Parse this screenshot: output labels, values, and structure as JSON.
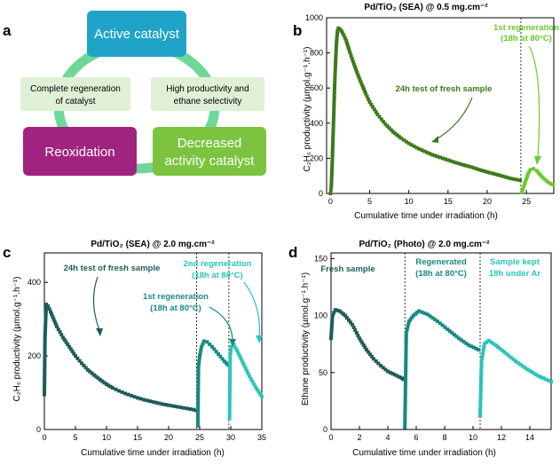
{
  "panels": {
    "a": {
      "label": "a",
      "boxes": {
        "active": "Active catalyst",
        "decreased_l1": "Decreased",
        "decreased_l2": "activity catalyst",
        "reoxidation": "Reoxidation",
        "regen_l1": "Complete regeneration",
        "regen_l2": "of catalyst",
        "prod_l1": "High productivity and",
        "prod_l2": "ethane selectivity"
      },
      "colors": {
        "active": "#1fa3c9",
        "decreased": "#7cc43f",
        "reoxidation": "#a0237f",
        "pale": "#dff0d6",
        "arrow": "#5fd08f"
      }
    },
    "b": {
      "label": "b",
      "title": "Pd/TiO₂ (SEA) @ 0.5 mg.cm⁻²",
      "ylabel": "C₂H₆ productivity (µmol.g⁻¹.h⁻¹)",
      "ann_fresh": "24h test of fresh sample",
      "ann_regen1": "1st regeneration",
      "ann_regen2": "(18h at 80°C)"
    },
    "c": {
      "label": "c",
      "title": "Pd/TiO₂ (SEA) @ 2.0 mg.cm⁻²",
      "ylabel": "C₂H₆ productivity (µmol.g⁻¹.h⁻¹)",
      "ann_fresh": "24h test of fresh sample",
      "ann_r1a": "1st regeneration",
      "ann_r1b": "(18h at 80°C)",
      "ann_r2a": "2nd regeneration",
      "ann_r2b": "(18h at 80°C)"
    },
    "d": {
      "label": "d",
      "title": "Pd/TiO₂ (Photo) @ 2.0 mg.cm⁻²",
      "ylabel": "Ethane productivity (µmol.g⁻¹.h⁻¹)",
      "ann_fresh": "Fresh sample",
      "ann_regen_a": "Regenerated",
      "ann_regen_b": "(18h at 80°C)",
      "ann_kept_a": "Sample kept",
      "ann_kept_b": "18h under Ar"
    }
  },
  "chart_data": [
    {
      "id": "b",
      "type": "scatter",
      "title": "Pd/TiO2 (SEA) @ 0.5 mg.cm-2",
      "xlabel": "Cumulative time under irradiation (h)",
      "ylabel": "C2H6 productivity (umol.g-1.h-1)",
      "xlim": [
        -0.5,
        28.5
      ],
      "ylim": [
        0,
        1000
      ],
      "xticks": [
        0,
        5,
        10,
        15,
        20,
        25
      ],
      "yticks": [
        0,
        200,
        400,
        600,
        800,
        1000
      ],
      "vlines": [
        24.3
      ],
      "series": [
        {
          "name": "fresh",
          "color": "#3d7a1a",
          "points": [
            [
              0,
              0
            ],
            [
              0.1,
              40
            ],
            [
              0.2,
              150
            ],
            [
              0.3,
              290
            ],
            [
              0.4,
              430
            ],
            [
              0.5,
              580
            ],
            [
              0.6,
              700
            ],
            [
              0.7,
              800
            ],
            [
              0.8,
              880
            ],
            [
              0.9,
              925
            ],
            [
              1.0,
              940
            ],
            [
              1.2,
              935
            ],
            [
              1.4,
              925
            ],
            [
              1.7,
              900
            ],
            [
              2,
              870
            ],
            [
              2.5,
              800
            ],
            [
              3,
              735
            ],
            [
              3.5,
              675
            ],
            [
              4,
              620
            ],
            [
              4.5,
              568
            ],
            [
              5,
              520
            ],
            [
              6,
              450
            ],
            [
              7,
              395
            ],
            [
              8,
              350
            ],
            [
              9,
              315
            ],
            [
              10,
              285
            ],
            [
              11,
              260
            ],
            [
              12,
              240
            ],
            [
              13,
              220
            ],
            [
              14,
              205
            ],
            [
              15,
              190
            ],
            [
              16,
              175
            ],
            [
              17,
              162
            ],
            [
              18,
              150
            ],
            [
              19,
              135
            ],
            [
              20,
              122
            ],
            [
              21,
              110
            ],
            [
              22,
              98
            ],
            [
              23,
              85
            ],
            [
              24.2,
              75
            ]
          ]
        },
        {
          "name": "1st regeneration",
          "color": "#6cc830",
          "points": [
            [
              24.4,
              5
            ],
            [
              24.6,
              30
            ],
            [
              24.9,
              70
            ],
            [
              25.2,
              110
            ],
            [
              25.5,
              135
            ],
            [
              25.9,
              140
            ],
            [
              26.3,
              130
            ],
            [
              26.7,
              110
            ],
            [
              27.1,
              90
            ],
            [
              27.6,
              70
            ],
            [
              28.1,
              55
            ],
            [
              28.4,
              50
            ]
          ]
        }
      ]
    },
    {
      "id": "c",
      "type": "scatter",
      "title": "Pd/TiO2 (SEA) @ 2.0 mg.cm-2",
      "xlabel": "Cumulative time under irradiation (h)",
      "ylabel": "C2H6 productivity (umol.g-1.h-1)",
      "xlim": [
        0,
        35
      ],
      "ylim": [
        0,
        480
      ],
      "xticks": [
        0,
        5,
        10,
        15,
        20,
        25,
        30,
        35
      ],
      "yticks": [
        0,
        200,
        400
      ],
      "vlines": [
        24.5,
        29.7
      ],
      "series": [
        {
          "name": "fresh",
          "color": "#1f5c57",
          "points": [
            [
              0,
              95
            ],
            [
              0.1,
              250
            ],
            [
              0.3,
              340
            ],
            [
              0.6,
              335
            ],
            [
              1,
              320
            ],
            [
              1.5,
              300
            ],
            [
              2,
              280
            ],
            [
              3,
              250
            ],
            [
              4,
              225
            ],
            [
              5,
              200
            ],
            [
              6,
              180
            ],
            [
              7,
              162
            ],
            [
              8,
              148
            ],
            [
              9,
              135
            ],
            [
              10,
              123
            ],
            [
              11,
              113
            ],
            [
              12,
              105
            ],
            [
              13,
              98
            ],
            [
              14,
              92
            ],
            [
              15,
              86
            ],
            [
              16,
              81
            ],
            [
              17,
              77
            ],
            [
              18,
              73
            ],
            [
              19,
              69
            ],
            [
              20,
              66
            ],
            [
              21,
              63
            ],
            [
              22,
              60
            ],
            [
              23,
              57
            ],
            [
              24,
              54
            ],
            [
              24.4,
              52
            ]
          ]
        },
        {
          "name": "1st regeneration",
          "color": "#178a80",
          "points": [
            [
              24.7,
              10
            ],
            [
              24.8,
              170
            ],
            [
              25,
              200
            ],
            [
              25.3,
              225
            ],
            [
              25.7,
              240
            ],
            [
              26.2,
              238
            ],
            [
              27,
              225
            ],
            [
              28,
              205
            ],
            [
              29,
              185
            ],
            [
              29.6,
              175
            ]
          ]
        },
        {
          "name": "2nd regeneration",
          "color": "#2bc4b8",
          "points": [
            [
              29.8,
              30
            ],
            [
              29.9,
              200
            ],
            [
              30.1,
              225
            ],
            [
              30.5,
              230
            ],
            [
              31,
              215
            ],
            [
              32,
              180
            ],
            [
              33,
              145
            ],
            [
              34,
              115
            ],
            [
              35,
              90
            ]
          ]
        }
      ]
    },
    {
      "id": "d",
      "type": "scatter",
      "title": "Pd/TiO2 (Photo) @ 2.0 mg.cm-2",
      "xlabel": "Cumulative time under irradiation (h)",
      "ylabel": "Ethane productivity (umol.g-1.h-1)",
      "xlim": [
        0,
        15.5
      ],
      "ylim": [
        0,
        155
      ],
      "xticks": [
        0,
        2,
        4,
        6,
        8,
        10,
        12,
        14
      ],
      "yticks": [
        0,
        50,
        100,
        150
      ],
      "vlines": [
        5.2,
        10.5
      ],
      "series": [
        {
          "name": "Fresh sample",
          "color": "#1f5c57",
          "points": [
            [
              0,
              80
            ],
            [
              0.1,
              100
            ],
            [
              0.3,
              105
            ],
            [
              0.6,
              104
            ],
            [
              1,
              100
            ],
            [
              1.5,
              92
            ],
            [
              2,
              80
            ],
            [
              2.5,
              70
            ],
            [
              3,
              62
            ],
            [
              3.5,
              56
            ],
            [
              4,
              51
            ],
            [
              4.5,
              48
            ],
            [
              5,
              45
            ],
            [
              5.1,
              44
            ]
          ]
        },
        {
          "name": "Regenerated (18h at 80C)",
          "color": "#178a80",
          "points": [
            [
              5.2,
              2
            ],
            [
              5.3,
              85
            ],
            [
              5.5,
              95
            ],
            [
              5.8,
              100
            ],
            [
              6.2,
              104
            ],
            [
              6.8,
              101
            ],
            [
              7.5,
              95
            ],
            [
              8.2,
              88
            ],
            [
              9,
              80
            ],
            [
              9.7,
              74
            ],
            [
              10.4,
              70
            ]
          ]
        },
        {
          "name": "Sample kept 18h under Ar",
          "color": "#2bc4b8",
          "points": [
            [
              10.5,
              12
            ],
            [
              10.6,
              60
            ],
            [
              10.8,
              75
            ],
            [
              11.1,
              78
            ],
            [
              11.6,
              74
            ],
            [
              12.2,
              68
            ],
            [
              13,
              60
            ],
            [
              13.8,
              53
            ],
            [
              14.6,
              47
            ],
            [
              15.5,
              42
            ]
          ]
        }
      ]
    }
  ]
}
